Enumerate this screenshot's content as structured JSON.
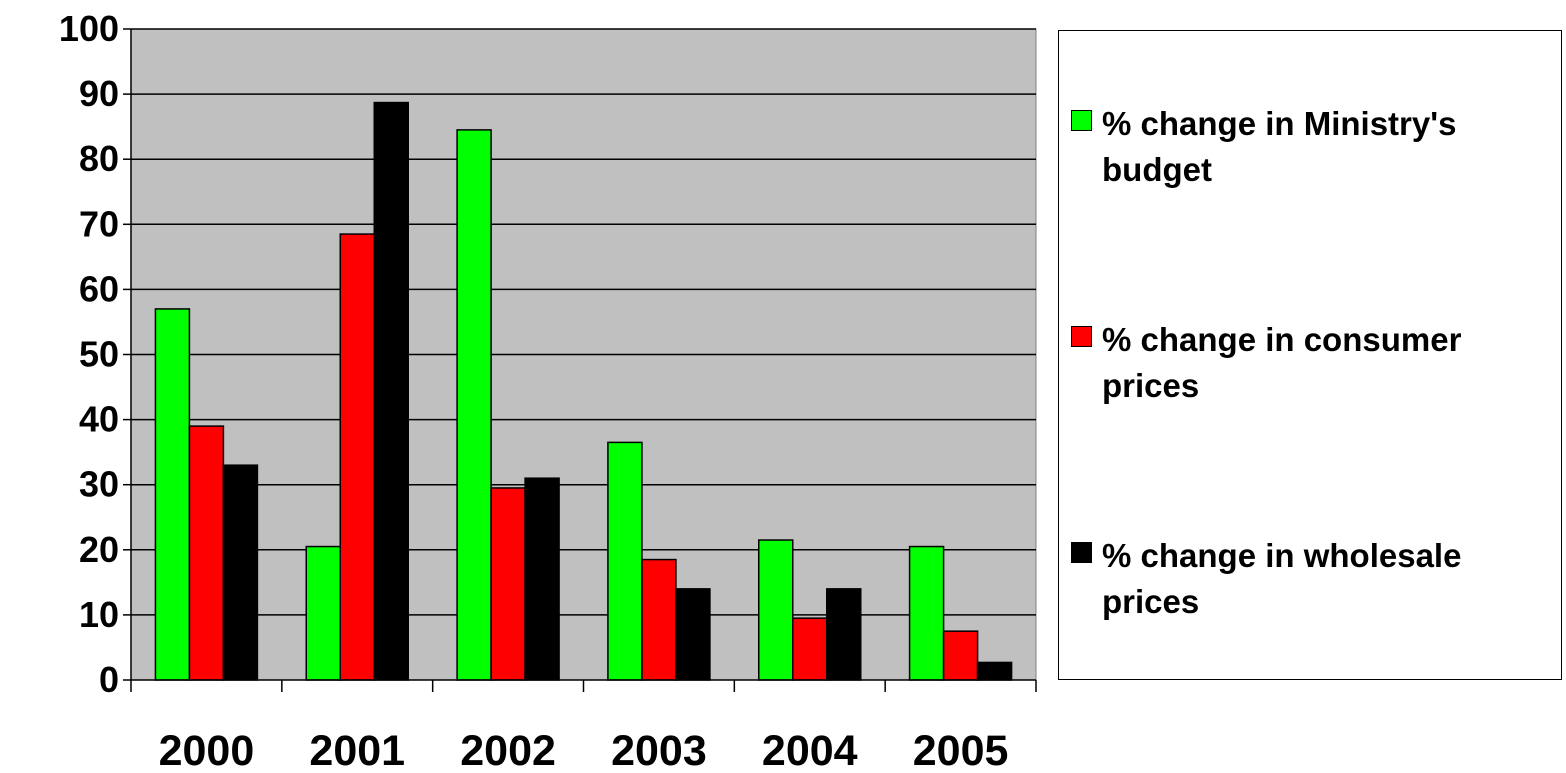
{
  "chart_data": {
    "type": "bar",
    "title": "",
    "xlabel": "",
    "ylabel": "",
    "categories": [
      "2000",
      "2001",
      "2002",
      "2003",
      "2004",
      "2005"
    ],
    "ylim": [
      0,
      100
    ],
    "yticks": [
      "0",
      "10",
      "20",
      "30",
      "40",
      "50",
      "60",
      "70",
      "80",
      "90",
      "100"
    ],
    "grid": true,
    "legend_position": "right",
    "plot_background": "#c0c0c0",
    "series": [
      {
        "name": "% change in Ministry's budget",
        "color": "#00ff00",
        "values": [
          57,
          20.5,
          84.5,
          36.5,
          21.5,
          20.5
        ]
      },
      {
        "name": "% change in consumer prices",
        "color": "#ff0000",
        "values": [
          39,
          68.5,
          29.5,
          18.5,
          9.5,
          7.5
        ]
      },
      {
        "name": "% change in wholesale prices",
        "color": "#000000",
        "values": [
          33,
          88.7,
          31,
          14,
          14,
          2.7
        ]
      }
    ]
  }
}
